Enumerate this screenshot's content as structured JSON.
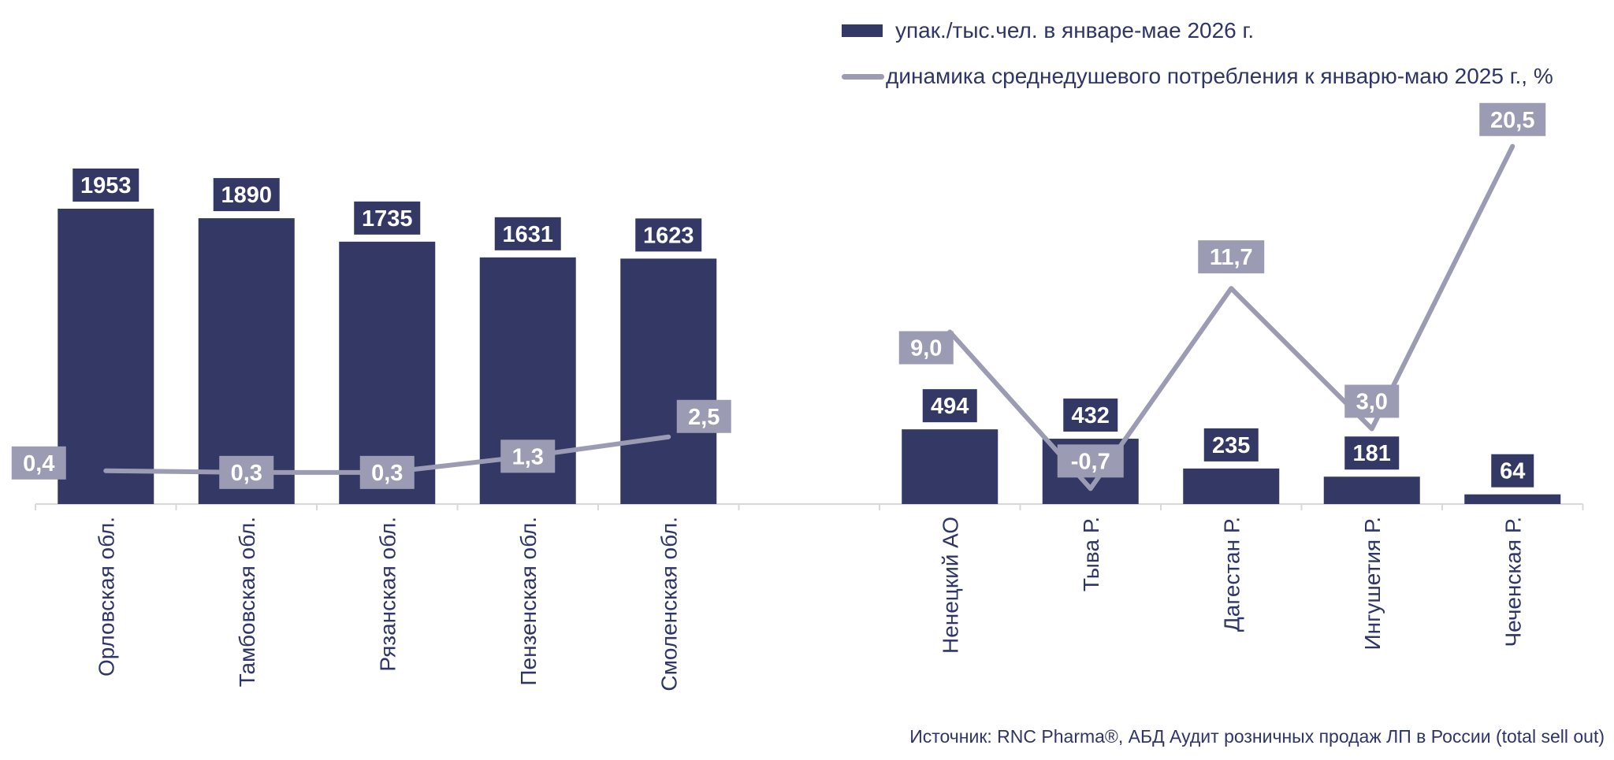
{
  "chart_data": {
    "type": "bar",
    "categories": [
      "Орловская обл.",
      "Тамбовская обл.",
      "Рязанская обл.",
      "Пензенская обл.",
      "Смоленская обл.",
      "",
      "Ненецкий АО",
      "Тыва Р.",
      "Дагестан Р.",
      "Ингушетия Р.",
      "Чеченская Р."
    ],
    "series": [
      {
        "name": "упак./тыс.чел. в январе-мае 2026 г.",
        "type": "bar",
        "values": [
          1953,
          1890,
          1735,
          1631,
          1623,
          null,
          494,
          432,
          235,
          181,
          64
        ],
        "labels": [
          "1953",
          "1890",
          "1735",
          "1631",
          "1623",
          "",
          "494",
          "432",
          "235",
          "181",
          "64"
        ]
      },
      {
        "name": "динамика среднедушевого потребления к январю-маю 2025 г., %",
        "type": "line",
        "values": [
          0.4,
          0.3,
          0.3,
          1.3,
          2.5,
          null,
          9.0,
          -0.7,
          11.7,
          3.0,
          20.5
        ],
        "labels": [
          "0,4",
          "0,3",
          "0,3",
          "1,3",
          "2,5",
          "",
          "9,0",
          "-0,7",
          "11,7",
          "3,0",
          "20,5"
        ]
      }
    ],
    "legend_position": "top-right",
    "grid": false,
    "colors": {
      "bar": "#333865",
      "line": "#9b9cb3",
      "label_text": "#ffffff",
      "text": "#2f3566",
      "axis": "#d8d8d8"
    }
  },
  "legend": {
    "bar_label": "упак./тыс.чел. в январе-мае 2026 г.",
    "line_label": "динамика среднедушевого потребления к январю-маю 2025 г., %"
  },
  "source": "Источник: RNC Pharma®, АБД Аудит розничных продаж ЛП в России (total sell out)"
}
